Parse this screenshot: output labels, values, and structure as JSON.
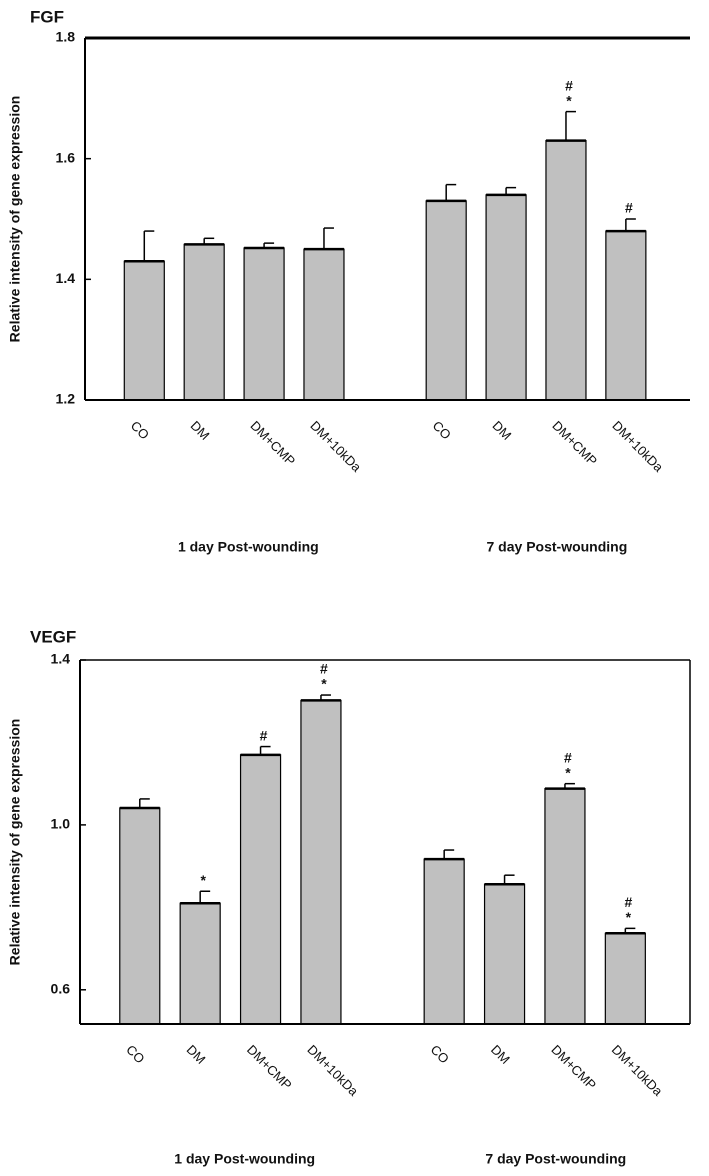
{
  "chart_data": [
    {
      "type": "bar",
      "title": "FGF",
      "ylabel": "Relative intensity of gene expression",
      "categories": [
        "CO",
        "DM",
        "DM+CMP",
        "DM+10kDa",
        "CO",
        "DM",
        "DM+CMP",
        "DM+10kDa"
      ],
      "groups": [
        "1 day Post-wounding",
        "7 day Post-wounding"
      ],
      "values": [
        1.43,
        1.458,
        1.452,
        1.45,
        1.53,
        1.54,
        1.63,
        1.48
      ],
      "errors": [
        0.05,
        0.01,
        0.008,
        0.035,
        0.027,
        0.012,
        0.048,
        0.02
      ],
      "annotations": [
        null,
        null,
        null,
        null,
        null,
        null,
        [
          "#",
          "*"
        ],
        [
          "#"
        ]
      ],
      "color": "#c0c0c0",
      "ylim": [
        1.2,
        1.8
      ],
      "yticks": [
        1.2,
        1.4,
        1.6,
        1.8
      ]
    },
    {
      "type": "bar",
      "title": "VEGF",
      "ylabel": "Relative intensity of gene expression",
      "categories": [
        "CO",
        "DM",
        "DM+CMP",
        "DM+10kDa",
        "CO",
        "DM",
        "DM+CMP",
        "DM+10kDa"
      ],
      "groups": [
        "1 day Post-wounding",
        "7 day Post-wounding"
      ],
      "values": [
        1.041,
        0.81,
        1.17,
        1.302,
        0.917,
        0.856,
        1.088,
        0.737
      ],
      "errors": [
        0.022,
        0.029,
        0.02,
        0.013,
        0.022,
        0.022,
        0.012,
        0.012
      ],
      "annotations": [
        null,
        [
          "*"
        ],
        [
          "#"
        ],
        [
          "#",
          "*"
        ],
        null,
        null,
        [
          "#",
          "*"
        ],
        [
          "#",
          "*"
        ]
      ],
      "color": "#c0c0c0",
      "ylim": [
        0.517,
        1.4
      ],
      "yticks": [
        0.6,
        {
          "value": 1,
          "label": "1.0"
        },
        1.4
      ]
    }
  ]
}
